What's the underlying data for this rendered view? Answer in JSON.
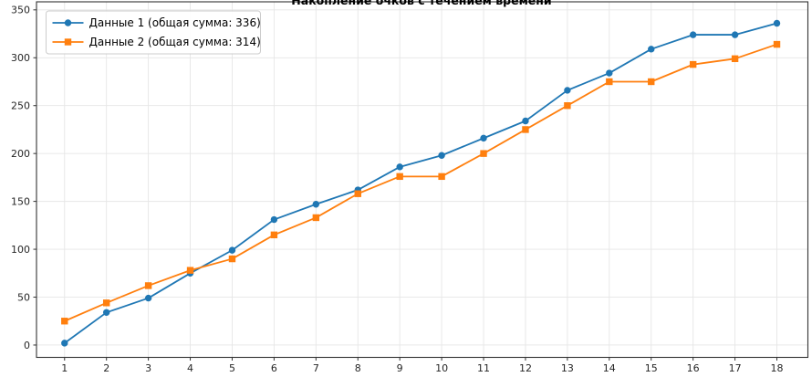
{
  "chart_data": {
    "type": "line",
    "title": "Накопление очков с течением времени",
    "x": [
      1,
      2,
      3,
      4,
      5,
      6,
      7,
      8,
      9,
      10,
      11,
      12,
      13,
      14,
      15,
      16,
      17,
      18
    ],
    "series": [
      {
        "name": "Данные 1 (общая сумма: 336)",
        "color": "#1f77b4",
        "marker": "circle",
        "values": [
          2,
          34,
          49,
          75,
          99,
          131,
          147,
          162,
          186,
          198,
          216,
          234,
          266,
          284,
          309,
          324,
          324,
          336
        ]
      },
      {
        "name": "Данные 2 (общая сумма: 314)",
        "color": "#ff7f0e",
        "marker": "square",
        "values": [
          25,
          44,
          62,
          78,
          90,
          115,
          133,
          158,
          176,
          176,
          200,
          225,
          250,
          275,
          275,
          293,
          299,
          314
        ]
      }
    ],
    "x_ticks": [
      1,
      2,
      3,
      4,
      5,
      6,
      7,
      8,
      9,
      10,
      11,
      12,
      13,
      14,
      15,
      16,
      17,
      18
    ],
    "y_ticks": [
      0,
      50,
      100,
      150,
      200,
      250,
      300,
      350
    ],
    "xlim": [
      0.33,
      18.74
    ],
    "ylim": [
      -12.9,
      358.4
    ],
    "grid": true,
    "grid_color": "#e6e6e6",
    "spine_color": "#333333",
    "legend_position": "upper-left"
  }
}
